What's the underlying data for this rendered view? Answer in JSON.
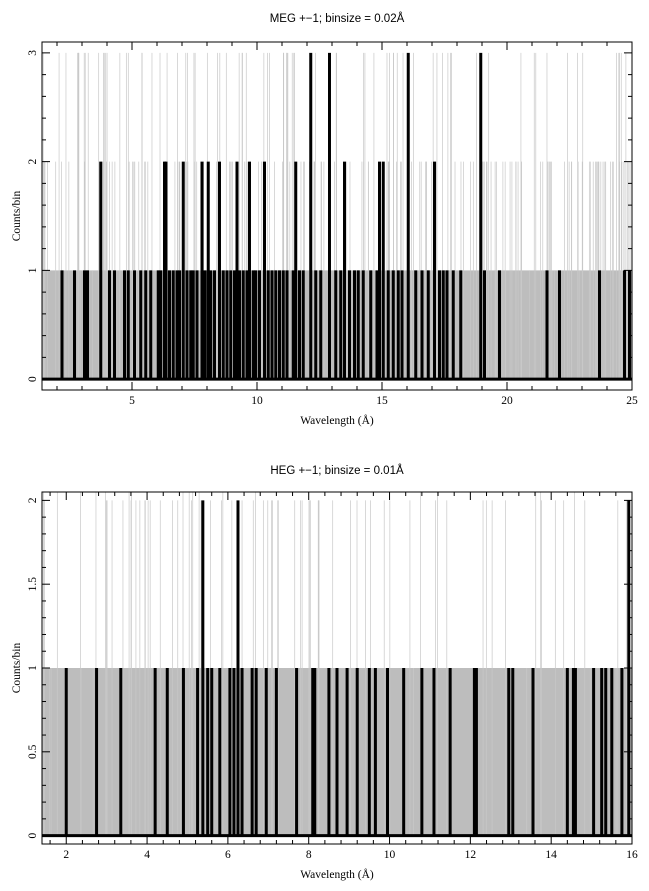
{
  "chart_data": [
    {
      "type": "line",
      "title": "MEG +−1; binsize = 0.02Å",
      "xlabel": "Wavelength (Å)",
      "ylabel": "Counts/bin",
      "xlim": [
        1.4,
        25
      ],
      "ylim": [
        -0.1,
        3.1
      ],
      "xticks": [
        5,
        10,
        15,
        20,
        25
      ],
      "xtick_labels": [
        "5",
        "10",
        "15",
        "20",
        "25"
      ],
      "yticks": [
        0,
        1,
        2,
        3
      ],
      "ytick_labels": [
        "0",
        "1",
        "2",
        "3"
      ],
      "grid": false,
      "background_band": {
        "from": 0,
        "to": 1,
        "color": "#bdbdbd"
      },
      "colors": {
        "counts": "#000000",
        "model": "#c8c8c8",
        "band": "#bdbdbd"
      },
      "series": [
        {
          "style": "thick-black-step",
          "points": [
            [
              2.2,
              1
            ],
            [
              2.7,
              1
            ],
            [
              3.1,
              1
            ],
            [
              3.22,
              1
            ],
            [
              3.75,
              2
            ],
            [
              4.1,
              1
            ],
            [
              4.3,
              1
            ],
            [
              4.7,
              1
            ],
            [
              4.85,
              1
            ],
            [
              5.1,
              1
            ],
            [
              5.35,
              1
            ],
            [
              5.55,
              1
            ],
            [
              5.75,
              1
            ],
            [
              6.05,
              1
            ],
            [
              6.15,
              1
            ],
            [
              6.3,
              2
            ],
            [
              6.36,
              2
            ],
            [
              6.5,
              1
            ],
            [
              6.65,
              1
            ],
            [
              6.8,
              1
            ],
            [
              6.9,
              1
            ],
            [
              7.05,
              2
            ],
            [
              7.2,
              1
            ],
            [
              7.35,
              1
            ],
            [
              7.45,
              1
            ],
            [
              7.6,
              1
            ],
            [
              7.8,
              2
            ],
            [
              7.92,
              1
            ],
            [
              8.05,
              2
            ],
            [
              8.15,
              1
            ],
            [
              8.3,
              1
            ],
            [
              8.5,
              2
            ],
            [
              8.65,
              1
            ],
            [
              8.8,
              1
            ],
            [
              8.95,
              1
            ],
            [
              9.1,
              1
            ],
            [
              9.2,
              2
            ],
            [
              9.3,
              1
            ],
            [
              9.45,
              1
            ],
            [
              9.6,
              1
            ],
            [
              9.7,
              2
            ],
            [
              9.85,
              1
            ],
            [
              9.95,
              1
            ],
            [
              10.1,
              1
            ],
            [
              10.3,
              2
            ],
            [
              10.45,
              1
            ],
            [
              10.6,
              1
            ],
            [
              10.75,
              1
            ],
            [
              10.9,
              1
            ],
            [
              11.05,
              1
            ],
            [
              11.2,
              1
            ],
            [
              11.45,
              1
            ],
            [
              11.55,
              2
            ],
            [
              11.7,
              1
            ],
            [
              11.85,
              1
            ],
            [
              12.15,
              3
            ],
            [
              12.35,
              1
            ],
            [
              12.55,
              1
            ],
            [
              12.9,
              3
            ],
            [
              13.15,
              1
            ],
            [
              13.35,
              1
            ],
            [
              13.5,
              2
            ],
            [
              13.7,
              1
            ],
            [
              13.9,
              1
            ],
            [
              14.05,
              1
            ],
            [
              14.25,
              1
            ],
            [
              14.55,
              1
            ],
            [
              14.8,
              1
            ],
            [
              14.9,
              2
            ],
            [
              15.05,
              2
            ],
            [
              15.25,
              1
            ],
            [
              15.45,
              1
            ],
            [
              15.65,
              1
            ],
            [
              15.8,
              1
            ],
            [
              16.05,
              3
            ],
            [
              16.35,
              1
            ],
            [
              16.6,
              1
            ],
            [
              16.85,
              1
            ],
            [
              17.1,
              2
            ],
            [
              17.3,
              1
            ],
            [
              17.45,
              1
            ],
            [
              17.6,
              1
            ],
            [
              17.85,
              1
            ],
            [
              18.15,
              1
            ],
            [
              18.95,
              3
            ],
            [
              19.1,
              1
            ],
            [
              19.7,
              1
            ],
            [
              21.6,
              1
            ],
            [
              22.1,
              1
            ],
            [
              23.7,
              1
            ],
            [
              24.7,
              1
            ],
            [
              24.9,
              1
            ]
          ]
        }
      ]
    },
    {
      "type": "line",
      "title": "HEG +−1; binsize = 0.01Å",
      "xlabel": "Wavelength (Å)",
      "ylabel": "Counts/bin",
      "xlim": [
        1.4,
        16
      ],
      "ylim": [
        -0.05,
        2.05
      ],
      "xticks": [
        2,
        4,
        6,
        8,
        10,
        12,
        14,
        16
      ],
      "xtick_labels": [
        "2",
        "4",
        "6",
        "8",
        "10",
        "12",
        "14",
        "16"
      ],
      "yticks": [
        0,
        0.5,
        1,
        1.5,
        2
      ],
      "ytick_labels": [
        "0",
        "0.5",
        "1",
        "1.5",
        "2"
      ],
      "grid": false,
      "background_band": {
        "from": 0,
        "to": 1,
        "color": "#bdbdbd"
      },
      "colors": {
        "counts": "#000000",
        "model": "#c8c8c8",
        "band": "#bdbdbd"
      },
      "series": [
        {
          "style": "thick-black-step",
          "points": [
            [
              2.0,
              1
            ],
            [
              2.75,
              1
            ],
            [
              3.35,
              1
            ],
            [
              4.2,
              1
            ],
            [
              4.5,
              1
            ],
            [
              4.9,
              1
            ],
            [
              5.25,
              1
            ],
            [
              5.38,
              2
            ],
            [
              5.5,
              1
            ],
            [
              5.6,
              1
            ],
            [
              5.8,
              1
            ],
            [
              6.05,
              1
            ],
            [
              6.15,
              1
            ],
            [
              6.25,
              2
            ],
            [
              6.35,
              1
            ],
            [
              6.6,
              1
            ],
            [
              6.7,
              1
            ],
            [
              6.95,
              1
            ],
            [
              7.2,
              1
            ],
            [
              7.7,
              1
            ],
            [
              8.1,
              1
            ],
            [
              8.15,
              1
            ],
            [
              8.5,
              1
            ],
            [
              8.7,
              1
            ],
            [
              8.95,
              1
            ],
            [
              9.2,
              1
            ],
            [
              9.5,
              1
            ],
            [
              9.65,
              1
            ],
            [
              9.95,
              1
            ],
            [
              10.35,
              1
            ],
            [
              10.8,
              1
            ],
            [
              11.1,
              1
            ],
            [
              11.5,
              1
            ],
            [
              12.1,
              1
            ],
            [
              12.15,
              1
            ],
            [
              12.95,
              1
            ],
            [
              13.05,
              1
            ],
            [
              13.55,
              1
            ],
            [
              14.4,
              1
            ],
            [
              14.55,
              1
            ],
            [
              14.6,
              1
            ],
            [
              15.05,
              1
            ],
            [
              15.25,
              1
            ],
            [
              15.35,
              1
            ],
            [
              15.5,
              1
            ],
            [
              15.75,
              1
            ],
            [
              15.92,
              2
            ]
          ]
        }
      ]
    }
  ]
}
